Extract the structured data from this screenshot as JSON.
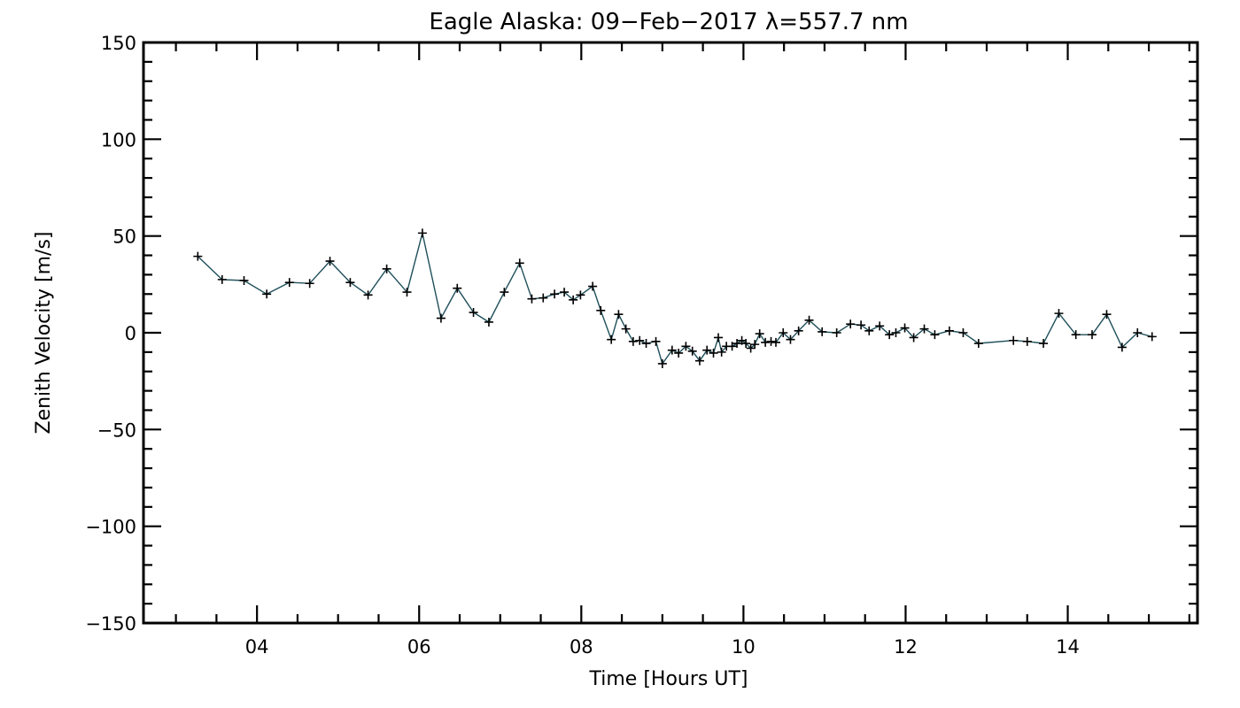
{
  "chart_data": {
    "type": "line",
    "title": "Eagle Alaska: 09−Feb−2017 λ=557.7 nm",
    "xlabel": "Time [Hours UT]",
    "ylabel": "Zenith Velocity [m/s]",
    "xlim": [
      2.6,
      15.6
    ],
    "ylim": [
      -150,
      150
    ],
    "x_tick_values": [
      4,
      6,
      8,
      10,
      12,
      14
    ],
    "x_tick_labels": [
      "04",
      "06",
      "08",
      "10",
      "12",
      "14"
    ],
    "y_tick_values": [
      -150,
      -100,
      -50,
      0,
      50,
      100,
      150
    ],
    "y_tick_labels": [
      "−150",
      "−100",
      "−50",
      "0",
      "50",
      "100",
      "150"
    ],
    "grid": false,
    "marker": "plus",
    "colors": {
      "line": "#1f4f5a",
      "marker": "#000000",
      "frame": "#000000"
    },
    "series": [
      {
        "points": [
          [
            3.27,
            39.5
          ],
          [
            3.57,
            27.5
          ],
          [
            3.84,
            27
          ],
          [
            4.12,
            20
          ],
          [
            4.4,
            26
          ],
          [
            4.65,
            25.5
          ],
          [
            4.9,
            37
          ],
          [
            5.15,
            26
          ],
          [
            5.37,
            19.5
          ],
          [
            5.6,
            33
          ],
          [
            5.85,
            21
          ],
          [
            6.04,
            51.5
          ],
          [
            6.27,
            7.5
          ],
          [
            6.47,
            23
          ],
          [
            6.67,
            10.5
          ],
          [
            6.86,
            5.5
          ],
          [
            7.05,
            21
          ],
          [
            7.24,
            36
          ],
          [
            7.39,
            17.5
          ],
          [
            7.53,
            18
          ],
          [
            7.67,
            20
          ],
          [
            7.79,
            21
          ],
          [
            7.9,
            17
          ],
          [
            7.99,
            19.5
          ],
          [
            8.14,
            24
          ],
          [
            8.24,
            11.5
          ],
          [
            8.37,
            -3.5
          ],
          [
            8.46,
            9.5
          ],
          [
            8.55,
            2
          ],
          [
            8.64,
            -4.5
          ],
          [
            8.72,
            -4
          ],
          [
            8.8,
            -5.5
          ],
          [
            8.92,
            -4.5
          ],
          [
            9.0,
            -16
          ],
          [
            9.12,
            -9
          ],
          [
            9.2,
            -10.5
          ],
          [
            9.29,
            -7
          ],
          [
            9.37,
            -9.5
          ],
          [
            9.46,
            -14.5
          ],
          [
            9.55,
            -9
          ],
          [
            9.63,
            -10.5
          ],
          [
            9.69,
            -2.5
          ],
          [
            9.73,
            -10
          ],
          [
            9.79,
            -7
          ],
          [
            9.86,
            -7
          ],
          [
            9.92,
            -5.5
          ],
          [
            9.98,
            -4
          ],
          [
            10.03,
            -5.5
          ],
          [
            10.09,
            -8
          ],
          [
            10.14,
            -6
          ],
          [
            10.2,
            -0.5
          ],
          [
            10.27,
            -5
          ],
          [
            10.34,
            -4.5
          ],
          [
            10.4,
            -5
          ],
          [
            10.49,
            0
          ],
          [
            10.58,
            -3.5
          ],
          [
            10.68,
            1
          ],
          [
            10.81,
            6.5
          ],
          [
            10.97,
            0.5
          ],
          [
            11.15,
            0
          ],
          [
            11.32,
            4.5
          ],
          [
            11.45,
            4
          ],
          [
            11.55,
            1
          ],
          [
            11.68,
            3.5
          ],
          [
            11.8,
            -1
          ],
          [
            11.88,
            0
          ],
          [
            11.99,
            2.5
          ],
          [
            12.1,
            -2.5
          ],
          [
            12.23,
            2
          ],
          [
            12.36,
            -1
          ],
          [
            12.54,
            1
          ],
          [
            12.71,
            0
          ],
          [
            12.9,
            -5.5
          ],
          [
            13.33,
            -4
          ],
          [
            13.5,
            -4.5
          ],
          [
            13.7,
            -5.5
          ],
          [
            13.89,
            10
          ],
          [
            14.1,
            -1
          ],
          [
            14.3,
            -1
          ],
          [
            14.48,
            9.5
          ],
          [
            14.67,
            -7.5
          ],
          [
            14.86,
            0
          ],
          [
            15.04,
            -2
          ]
        ]
      }
    ]
  }
}
